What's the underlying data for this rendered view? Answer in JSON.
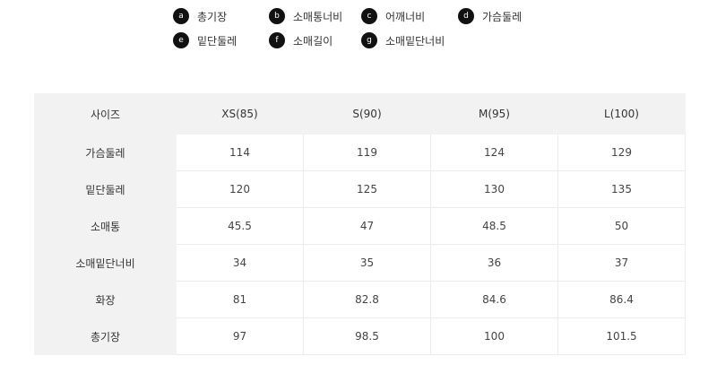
{
  "legend": [
    {
      "key": "a",
      "label": "총기장"
    },
    {
      "key": "b",
      "label": "소매통너비"
    },
    {
      "key": "c",
      "label": "어깨너비"
    },
    {
      "key": "d",
      "label": "가슴둘레"
    },
    {
      "key": "e",
      "label": "밑단둘레"
    },
    {
      "key": "f",
      "label": "소매길이"
    },
    {
      "key": "g",
      "label": "소매밑단너비"
    }
  ],
  "table": {
    "headers": [
      "사이즈",
      "XS(85)",
      "S(90)",
      "M(95)",
      "L(100)"
    ],
    "rows": [
      [
        "가슴둘레",
        "114",
        "119",
        "124",
        "129"
      ],
      [
        "밑단둘레",
        "120",
        "125",
        "130",
        "135"
      ],
      [
        "소매통",
        "45.5",
        "47",
        "48.5",
        "50"
      ],
      [
        "소매밑단너비",
        "34",
        "35",
        "36",
        "37"
      ],
      [
        "화장",
        "81",
        "82.8",
        "84.6",
        "86.4"
      ],
      [
        "총기장",
        "97",
        "98.5",
        "100",
        "101.5"
      ]
    ]
  }
}
